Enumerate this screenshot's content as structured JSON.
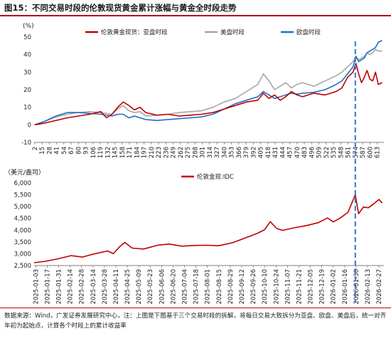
{
  "title": "图15：不同交易时段的伦敦现货黄金累计涨幅与黄金全时段走势",
  "source_text": "数据来源：Wind，广发证券发展研究中心，注：上图是下图基于三个交易时段的拆解，将每日交易大致拆分为亚盘、欧盘、美盘后，统一对齐年初为起始点，计算各个时段上的累计收益率",
  "colors": {
    "asia": "#c00000",
    "us": "#a6a6a6",
    "europe": "#1f6fc5",
    "idc": "#c00000",
    "vline": "#2e75d6"
  },
  "chart_data": [
    {
      "type": "line",
      "ylabel": "(%)",
      "ylim": [
        -10,
        50
      ],
      "yticks": [
        -10,
        0,
        10,
        20,
        30,
        40,
        50
      ],
      "xlim": [
        1,
        625
      ],
      "xticks": [
        2,
        15,
        28,
        41,
        54,
        67,
        80,
        93,
        106,
        119,
        132,
        145,
        158,
        171,
        184,
        197,
        210,
        223,
        236,
        249,
        262,
        275,
        288,
        301,
        314,
        327,
        340,
        353,
        366,
        379,
        392,
        405,
        418,
        431,
        444,
        457,
        470,
        483,
        496,
        509,
        522,
        535,
        548,
        561,
        574,
        587,
        600,
        613
      ],
      "vline_x": 572,
      "legend": [
        "伦敦黄金现货：亚盘时段",
        "美盘时段",
        "欧盘时段"
      ],
      "series": [
        {
          "name": "伦敦黄金现货：亚盘时段",
          "color": "#c00000",
          "points": [
            [
              2,
              0
            ],
            [
              20,
              1
            ],
            [
              40,
              2.5
            ],
            [
              60,
              4
            ],
            [
              80,
              5
            ],
            [
              100,
              6
            ],
            [
              120,
              7.5
            ],
            [
              130,
              4
            ],
            [
              140,
              6
            ],
            [
              150,
              10
            ],
            [
              160,
              13
            ],
            [
              170,
              11
            ],
            [
              180,
              8.5
            ],
            [
              190,
              10
            ],
            [
              200,
              7
            ],
            [
              220,
              5.5
            ],
            [
              240,
              6
            ],
            [
              260,
              5
            ],
            [
              280,
              5.5
            ],
            [
              300,
              6
            ],
            [
              320,
              7
            ],
            [
              340,
              9
            ],
            [
              360,
              11
            ],
            [
              380,
              13
            ],
            [
              400,
              14
            ],
            [
              410,
              18
            ],
            [
              420,
              15
            ],
            [
              430,
              17
            ],
            [
              440,
              14
            ],
            [
              450,
              16
            ],
            [
              460,
              19
            ],
            [
              470,
              17
            ],
            [
              480,
              16
            ],
            [
              500,
              18
            ],
            [
              520,
              17
            ],
            [
              540,
              19
            ],
            [
              550,
              21
            ],
            [
              560,
              27
            ],
            [
              570,
              30
            ],
            [
              575,
              35
            ],
            [
              580,
              29
            ],
            [
              585,
              24
            ],
            [
              590,
              27
            ],
            [
              595,
              31
            ],
            [
              600,
              26
            ],
            [
              605,
              25
            ],
            [
              610,
              30
            ],
            [
              615,
              23
            ],
            [
              622,
              24
            ]
          ]
        },
        {
          "name": "美盘时段",
          "color": "#a6a6a6",
          "points": [
            [
              2,
              0
            ],
            [
              20,
              2
            ],
            [
              40,
              4.5
            ],
            [
              60,
              6
            ],
            [
              80,
              7
            ],
            [
              100,
              7.5
            ],
            [
              120,
              7
            ],
            [
              140,
              6
            ],
            [
              150,
              9
            ],
            [
              160,
              11
            ],
            [
              170,
              8
            ],
            [
              180,
              7
            ],
            [
              190,
              7.5
            ],
            [
              200,
              5
            ],
            [
              220,
              5.5
            ],
            [
              240,
              6
            ],
            [
              260,
              7
            ],
            [
              280,
              7.5
            ],
            [
              300,
              8
            ],
            [
              320,
              10
            ],
            [
              340,
              13
            ],
            [
              360,
              15
            ],
            [
              380,
              19
            ],
            [
              400,
              23
            ],
            [
              410,
              29
            ],
            [
              420,
              25
            ],
            [
              430,
              20
            ],
            [
              440,
              22
            ],
            [
              450,
              24
            ],
            [
              460,
              21
            ],
            [
              470,
              23
            ],
            [
              480,
              24
            ],
            [
              500,
              22
            ],
            [
              520,
              25
            ],
            [
              540,
              28
            ],
            [
              550,
              30
            ],
            [
              560,
              33
            ],
            [
              570,
              36
            ],
            [
              575,
              39
            ],
            [
              580,
              37
            ],
            [
              585,
              38
            ],
            [
              590,
              39
            ],
            [
              595,
              41
            ],
            [
              600,
              40
            ],
            [
              605,
              41
            ],
            [
              610,
              43
            ],
            [
              615,
              42
            ],
            [
              622,
              42
            ]
          ]
        },
        {
          "name": "欧盘时段",
          "color": "#1f6fc5",
          "points": [
            [
              2,
              0
            ],
            [
              20,
              2
            ],
            [
              40,
              5
            ],
            [
              60,
              7
            ],
            [
              80,
              7
            ],
            [
              100,
              6.5
            ],
            [
              120,
              6
            ],
            [
              140,
              5
            ],
            [
              150,
              6
            ],
            [
              160,
              6
            ],
            [
              170,
              4
            ],
            [
              180,
              5
            ],
            [
              190,
              4
            ],
            [
              200,
              3
            ],
            [
              220,
              2.5
            ],
            [
              240,
              3
            ],
            [
              260,
              3.5
            ],
            [
              280,
              4
            ],
            [
              300,
              4.5
            ],
            [
              320,
              6
            ],
            [
              340,
              9
            ],
            [
              360,
              12
            ],
            [
              380,
              14
            ],
            [
              400,
              16
            ],
            [
              410,
              19
            ],
            [
              420,
              17
            ],
            [
              430,
              15
            ],
            [
              440,
              16
            ],
            [
              450,
              17
            ],
            [
              460,
              18
            ],
            [
              470,
              17.5
            ],
            [
              480,
              18
            ],
            [
              500,
              18.5
            ],
            [
              520,
              20
            ],
            [
              540,
              23
            ],
            [
              550,
              25
            ],
            [
              560,
              29
            ],
            [
              570,
              33
            ],
            [
              575,
              39
            ],
            [
              580,
              36
            ],
            [
              585,
              37
            ],
            [
              590,
              38
            ],
            [
              595,
              41
            ],
            [
              600,
              42
            ],
            [
              605,
              43
            ],
            [
              610,
              44
            ],
            [
              615,
              47
            ],
            [
              622,
              48
            ]
          ]
        }
      ]
    },
    {
      "type": "line",
      "ylabel": "（美元/盎司）",
      "ylim": [
        2500,
        6000
      ],
      "yticks": [
        2500,
        3000,
        3500,
        4000,
        4500,
        5000,
        5500,
        6000
      ],
      "xlim": [
        "2025-01-01",
        "2026-03-05"
      ],
      "xticks": [
        "2025-01-03",
        "2025-01-17",
        "2025-01-31",
        "2025-02-14",
        "2025-02-28",
        "2025-03-14",
        "2025-03-28",
        "2025-04-11",
        "2025-04-25",
        "2025-05-09",
        "2025-05-23",
        "2025-06-06",
        "2025-06-20",
        "2025-07-04",
        "2025-07-18",
        "2025-08-01",
        "2025-08-15",
        "2025-08-29",
        "2025-09-12",
        "2025-09-26",
        "2025-10-10",
        "2025-10-24",
        "2025-11-07",
        "2025-11-21",
        "2025-12-05",
        "2025-12-19",
        "2026-01-02",
        "2026-01-16",
        "2026-01-30",
        "2026-02-13",
        "2026-02-27"
      ],
      "vline_x": "2026-01-29",
      "legend": [
        "伦敦金现:IDC"
      ],
      "series": [
        {
          "name": "伦敦金现:IDC",
          "color": "#c00000",
          "points": [
            [
              "2025-01-01",
              2620
            ],
            [
              "2025-01-15",
              2680
            ],
            [
              "2025-02-01",
              2800
            ],
            [
              "2025-02-15",
              2920
            ],
            [
              "2025-03-01",
              2860
            ],
            [
              "2025-03-15",
              2990
            ],
            [
              "2025-04-01",
              3120
            ],
            [
              "2025-04-08",
              3000
            ],
            [
              "2025-04-15",
              3280
            ],
            [
              "2025-04-22",
              3480
            ],
            [
              "2025-05-01",
              3240
            ],
            [
              "2025-05-15",
              3200
            ],
            [
              "2025-06-01",
              3360
            ],
            [
              "2025-06-15",
              3410
            ],
            [
              "2025-07-01",
              3320
            ],
            [
              "2025-07-15",
              3350
            ],
            [
              "2025-08-01",
              3360
            ],
            [
              "2025-08-15",
              3340
            ],
            [
              "2025-09-01",
              3470
            ],
            [
              "2025-09-15",
              3650
            ],
            [
              "2025-10-01",
              3860
            ],
            [
              "2025-10-10",
              4020
            ],
            [
              "2025-10-17",
              4360
            ],
            [
              "2025-10-25",
              4070
            ],
            [
              "2025-11-01",
              3990
            ],
            [
              "2025-11-15",
              4100
            ],
            [
              "2025-12-01",
              4200
            ],
            [
              "2025-12-15",
              4320
            ],
            [
              "2025-12-26",
              4520
            ],
            [
              "2026-01-02",
              4350
            ],
            [
              "2026-01-10",
              4500
            ],
            [
              "2026-01-20",
              4750
            ],
            [
              "2026-01-29",
              5500
            ],
            [
              "2026-02-02",
              4700
            ],
            [
              "2026-02-08",
              4980
            ],
            [
              "2026-02-14",
              4950
            ],
            [
              "2026-02-20",
              5100
            ],
            [
              "2026-02-27",
              5300
            ],
            [
              "2026-03-03",
              5150
            ]
          ]
        }
      ]
    }
  ]
}
